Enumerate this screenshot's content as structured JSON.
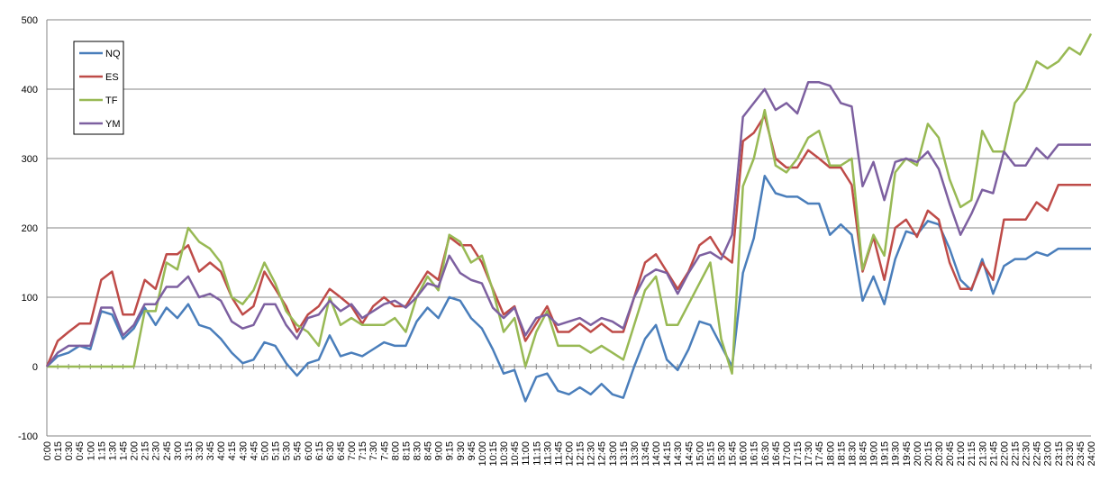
{
  "chart_data": {
    "type": "line",
    "title": "",
    "xlabel": "",
    "ylabel": "",
    "ylim": [
      -100,
      500
    ],
    "yticks": [
      -100,
      0,
      100,
      200,
      300,
      400,
      500
    ],
    "grid": "horizontal",
    "legend_position": "top-left",
    "x": [
      "0:00",
      "0:15",
      "0:30",
      "0:45",
      "1:00",
      "1:15",
      "1:30",
      "1:45",
      "2:00",
      "2:15",
      "2:30",
      "2:45",
      "3:00",
      "3:15",
      "3:30",
      "3:45",
      "4:00",
      "4:15",
      "4:30",
      "4:45",
      "5:00",
      "5:15",
      "5:30",
      "5:45",
      "6:00",
      "6:15",
      "6:30",
      "6:45",
      "7:00",
      "7:15",
      "7:30",
      "7:45",
      "8:00",
      "8:15",
      "8:30",
      "8:45",
      "9:00",
      "9:15",
      "9:30",
      "9:45",
      "10:00",
      "10:15",
      "10:30",
      "10:45",
      "11:00",
      "11:15",
      "11:30",
      "11:45",
      "12:00",
      "12:15",
      "12:30",
      "12:45",
      "13:00",
      "13:15",
      "13:30",
      "13:45",
      "14:00",
      "14:15",
      "14:30",
      "14:45",
      "15:00",
      "15:15",
      "15:30",
      "15:45",
      "16:00",
      "16:15",
      "16:30",
      "16:45",
      "17:00",
      "17:15",
      "17:30",
      "17:45",
      "18:00",
      "18:15",
      "18:30",
      "18:45",
      "19:00",
      "19:15",
      "19:30",
      "19:45",
      "20:00",
      "20:15",
      "20:30",
      "20:45",
      "21:00",
      "21:15",
      "21:30",
      "21:45",
      "22:00",
      "22:15",
      "22:30",
      "22:45",
      "23:00",
      "23:15",
      "23:30",
      "23:45",
      "24:00"
    ],
    "series": [
      {
        "name": "NQ",
        "color": "#4a7ebb",
        "values": [
          0,
          15,
          20,
          30,
          25,
          80,
          75,
          40,
          55,
          85,
          60,
          85,
          70,
          90,
          60,
          55,
          40,
          20,
          5,
          10,
          35,
          30,
          5,
          -13,
          5,
          10,
          45,
          15,
          20,
          15,
          25,
          35,
          30,
          30,
          65,
          85,
          70,
          100,
          95,
          70,
          55,
          25,
          -10,
          -5,
          -50,
          -15,
          -10,
          -35,
          -40,
          -30,
          -40,
          -25,
          -40,
          -45,
          0,
          40,
          60,
          10,
          -5,
          25,
          65,
          60,
          30,
          0,
          135,
          185,
          275,
          250,
          245,
          245,
          235,
          235,
          190,
          205,
          190,
          95,
          130,
          90,
          155,
          195,
          190,
          210,
          205,
          170,
          125,
          110,
          155,
          105,
          145,
          155,
          155,
          165,
          160,
          170,
          170,
          170,
          170
        ]
      },
      {
        "name": "ES",
        "color": "#be4b48",
        "values": [
          0,
          37,
          50,
          62,
          62,
          125,
          137,
          75,
          75,
          125,
          112,
          162,
          162,
          175,
          137,
          150,
          137,
          100,
          75,
          87,
          137,
          112,
          87,
          50,
          75,
          87,
          112,
          100,
          87,
          62,
          87,
          100,
          87,
          87,
          112,
          137,
          125,
          187,
          175,
          175,
          150,
          112,
          75,
          87,
          37,
          62,
          87,
          50,
          50,
          62,
          50,
          62,
          50,
          50,
          100,
          150,
          162,
          137,
          112,
          137,
          175,
          187,
          162,
          150,
          325,
          337,
          362,
          300,
          287,
          287,
          312,
          300,
          287,
          287,
          262,
          137,
          187,
          125,
          200,
          212,
          187,
          225,
          212,
          150,
          112,
          112,
          150,
          125,
          212,
          212,
          212,
          237,
          225,
          262,
          262,
          262,
          262
        ]
      },
      {
        "name": "TF",
        "color": "#98b954",
        "values": [
          0,
          0,
          0,
          0,
          0,
          0,
          0,
          0,
          0,
          80,
          80,
          150,
          140,
          200,
          180,
          170,
          150,
          100,
          90,
          110,
          150,
          120,
          80,
          60,
          50,
          30,
          100,
          60,
          70,
          60,
          60,
          60,
          70,
          50,
          100,
          130,
          110,
          190,
          180,
          150,
          160,
          110,
          50,
          70,
          0,
          50,
          80,
          30,
          30,
          30,
          20,
          30,
          20,
          10,
          60,
          110,
          130,
          60,
          60,
          90,
          120,
          150,
          40,
          -10,
          260,
          300,
          370,
          290,
          280,
          300,
          330,
          340,
          290,
          290,
          300,
          140,
          190,
          160,
          280,
          300,
          290,
          350,
          330,
          270,
          230,
          240,
          340,
          310,
          310,
          380,
          400,
          440,
          430,
          440,
          460,
          450,
          480
        ]
      },
      {
        "name": "YM",
        "color": "#7d60a0",
        "values": [
          0,
          20,
          30,
          30,
          30,
          85,
          85,
          45,
          60,
          90,
          90,
          115,
          115,
          130,
          100,
          105,
          95,
          65,
          55,
          60,
          90,
          90,
          60,
          40,
          70,
          75,
          95,
          80,
          90,
          70,
          80,
          90,
          95,
          85,
          100,
          120,
          115,
          160,
          135,
          125,
          120,
          85,
          70,
          85,
          45,
          70,
          75,
          60,
          65,
          70,
          60,
          70,
          65,
          55,
          100,
          130,
          140,
          135,
          105,
          135,
          160,
          165,
          155,
          190,
          360,
          380,
          400,
          370,
          380,
          365,
          410,
          410,
          405,
          380,
          375,
          260,
          295,
          240,
          295,
          300,
          295,
          310,
          285,
          235,
          190,
          220,
          255,
          250,
          310,
          290,
          290,
          315,
          300,
          320,
          320,
          320,
          320
        ]
      }
    ]
  }
}
